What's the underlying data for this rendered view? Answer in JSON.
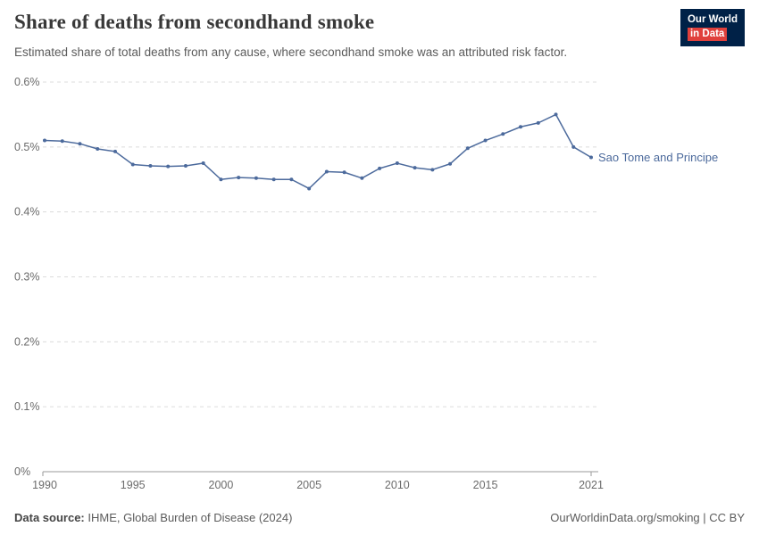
{
  "header": {
    "title": "Share of deaths from secondhand smoke",
    "subtitle": "Estimated share of total deaths from any cause, where secondhand smoke was an attributed risk factor.",
    "logo": {
      "line1": "Our World",
      "line2": "in Data"
    }
  },
  "chart_data": {
    "type": "line",
    "title": "Share of deaths from secondhand smoke",
    "xlabel": "",
    "ylabel": "",
    "xlim": [
      1990,
      2021
    ],
    "ylim": [
      0,
      0.6
    ],
    "x_ticks": [
      1990,
      1995,
      2000,
      2005,
      2010,
      2015,
      2021
    ],
    "y_ticks": [
      0,
      0.1,
      0.2,
      0.3,
      0.4,
      0.5,
      0.6
    ],
    "y_tick_labels": [
      "0%",
      "0.1%",
      "0.2%",
      "0.3%",
      "0.4%",
      "0.5%",
      "0.6%"
    ],
    "grid": "horizontal-dashed",
    "legend_position": "end-of-line-label",
    "line_color": "#4C6A9C",
    "axis_color": "#9a9a9a",
    "grid_color": "#dcdcdc",
    "tick_label_color": "#6b6b6b",
    "series": [
      {
        "name": "Sao Tome and Principe",
        "x": [
          1990,
          1991,
          1992,
          1993,
          1994,
          1995,
          1996,
          1997,
          1998,
          1999,
          2000,
          2001,
          2002,
          2003,
          2004,
          2005,
          2006,
          2007,
          2008,
          2009,
          2010,
          2011,
          2012,
          2013,
          2014,
          2015,
          2016,
          2017,
          2018,
          2019,
          2020,
          2021
        ],
        "values": [
          0.51,
          0.509,
          0.505,
          0.497,
          0.493,
          0.473,
          0.471,
          0.47,
          0.471,
          0.475,
          0.45,
          0.453,
          0.452,
          0.45,
          0.45,
          0.436,
          0.462,
          0.461,
          0.452,
          0.467,
          0.475,
          0.468,
          0.465,
          0.474,
          0.498,
          0.51,
          0.52,
          0.531,
          0.537,
          0.55,
          0.5,
          0.484
        ]
      }
    ]
  },
  "footer": {
    "source_label": "Data source:",
    "source_text": " IHME, Global Burden of Disease (2024)",
    "rights": "OurWorldinData.org/smoking | CC BY"
  }
}
